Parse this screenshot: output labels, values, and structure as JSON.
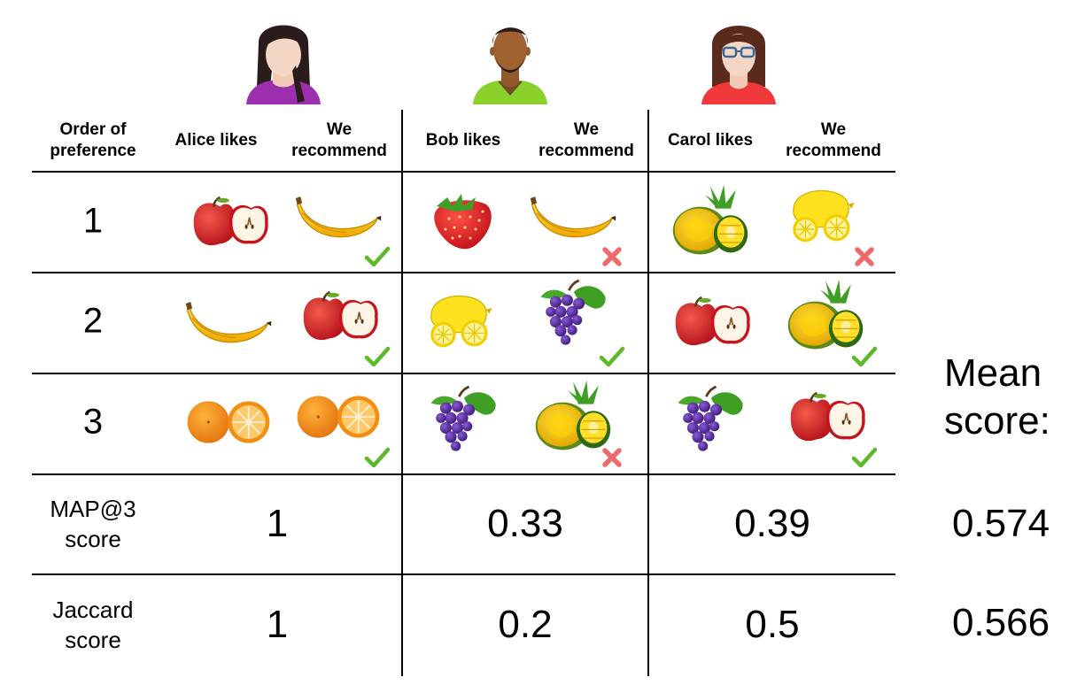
{
  "users": [
    {
      "name": "Alice",
      "likes_header": "Alice likes",
      "rec_header": "We\nrecommend",
      "shirt_color": "#9c2fae",
      "skin": "#f4d6c4",
      "hair": "#2a1c1a"
    },
    {
      "name": "Bob",
      "likes_header": "Bob likes",
      "rec_header": "We\nrecommend",
      "shirt_color": "#8bd12b",
      "skin": "#a0622f",
      "hair": "#2a1c1a"
    },
    {
      "name": "Carol",
      "likes_header": "Carol likes",
      "rec_header": "We\nrecommend",
      "shirt_color": "#f03a3a",
      "skin": "#f4d6c4",
      "hair": "#5a2a1c"
    }
  ],
  "order_header": "Order of\npreference",
  "ranks": [
    "1",
    "2",
    "3"
  ],
  "grid": [
    [
      {
        "likes": "apple-icon",
        "rec": "banana-icon",
        "mark": "check-icon"
      },
      {
        "likes": "strawberry-icon",
        "rec": "banana-icon",
        "mark": "cross-icon"
      },
      {
        "likes": "pineapple-icon",
        "rec": "lemon-icon",
        "mark": "cross-icon"
      }
    ],
    [
      {
        "likes": "banana-icon",
        "rec": "apple-icon",
        "mark": "check-icon"
      },
      {
        "likes": "lemon-icon",
        "rec": "grapes-icon",
        "mark": "check-icon"
      },
      {
        "likes": "apple-icon",
        "rec": "pineapple-icon",
        "mark": "check-icon"
      }
    ],
    [
      {
        "likes": "orange-icon",
        "rec": "orange-icon",
        "mark": "check-icon"
      },
      {
        "likes": "grapes-icon",
        "rec": "pineapple-icon",
        "mark": "cross-icon"
      },
      {
        "likes": "grapes-icon",
        "rec": "apple-icon",
        "mark": "check-icon"
      }
    ]
  ],
  "map_label": "MAP@3\nscore",
  "map_scores": [
    "1",
    "0.33",
    "0.39"
  ],
  "jaccard_label": "Jaccard\nscore",
  "jaccard_scores": [
    "1",
    "0.2",
    "0.5"
  ],
  "mean_label": "Mean\nscore:",
  "mean_map": "0.574",
  "mean_jaccard": "0.566",
  "colors": {
    "check": "#5fb82a",
    "cross": "#ee6b6b"
  }
}
